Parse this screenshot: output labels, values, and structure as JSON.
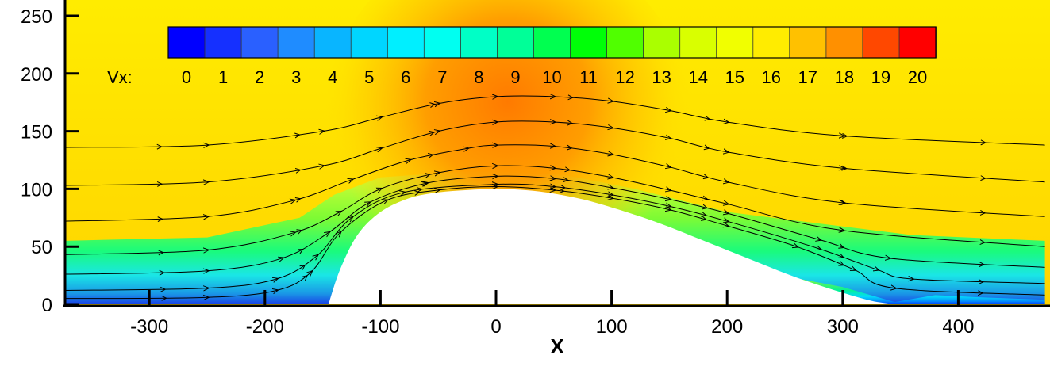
{
  "chart_data": {
    "type": "heatmap",
    "title": "",
    "xlabel": "X",
    "ylabel": "",
    "xlim": [
      -375,
      475
    ],
    "ylim": [
      0,
      265
    ],
    "x_ticks": [
      -300,
      -200,
      -100,
      0,
      100,
      200,
      300,
      400
    ],
    "y_ticks": [
      0,
      50,
      100,
      150,
      200,
      250
    ],
    "grid": false,
    "colorbar": {
      "variable_label": "Vx:",
      "levels": [
        0,
        1,
        2,
        3,
        4,
        5,
        6,
        7,
        8,
        9,
        10,
        11,
        12,
        13,
        14,
        15,
        16,
        17,
        18,
        19,
        20
      ],
      "colors": [
        "#0000ff",
        "#2f6bff",
        "#00c8ff",
        "#00ffff",
        "#00ffa0",
        "#00ff00",
        "#c8ff00",
        "#ffff00",
        "#ffa000",
        "#ff0000"
      ],
      "placement": "top"
    },
    "obstacle_profile": {
      "x": [
        -145,
        -135,
        -120,
        -100,
        -75,
        -50,
        -25,
        0,
        25,
        50,
        75,
        100,
        125,
        150,
        175,
        200,
        225,
        250,
        275,
        300,
        325,
        345
      ],
      "y": [
        0,
        30,
        60,
        80,
        92,
        97,
        99,
        100,
        99,
        96,
        91,
        84,
        76,
        67,
        57,
        47,
        37,
        27,
        18,
        10,
        3,
        0
      ]
    },
    "streamlines": [
      {
        "y0": 135,
        "x": [
          -375,
          -250,
          -150,
          -100,
          -50,
          0,
          50,
          100,
          150,
          200,
          300,
          475
        ],
        "y": [
          136,
          138,
          150,
          162,
          174,
          180,
          180,
          176,
          168,
          158,
          146,
          138
        ]
      },
      {
        "y0": 103,
        "x": [
          -375,
          -250,
          -150,
          -100,
          -50,
          0,
          50,
          100,
          150,
          200,
          300,
          475
        ],
        "y": [
          103,
          106,
          120,
          135,
          150,
          158,
          158,
          153,
          144,
          132,
          118,
          106
        ]
      },
      {
        "y0": 72,
        "x": [
          -375,
          -250,
          -175,
          -125,
          -75,
          -25,
          0,
          50,
          100,
          150,
          200,
          300,
          475
        ],
        "y": [
          72,
          76,
          90,
          108,
          125,
          135,
          138,
          137,
          130,
          119,
          106,
          88,
          76
        ]
      },
      {
        "y0": 43,
        "x": [
          -375,
          -250,
          -175,
          -135,
          -100,
          -50,
          0,
          50,
          100,
          150,
          200,
          300,
          475
        ],
        "y": [
          43,
          47,
          62,
          80,
          100,
          114,
          120,
          118,
          110,
          99,
          87,
          64,
          50
        ]
      },
      {
        "y0": 26,
        "x": [
          -375,
          -250,
          -185,
          -145,
          -110,
          -60,
          0,
          50,
          100,
          150,
          200,
          280,
          340,
          475
        ],
        "y": [
          26,
          29,
          40,
          62,
          88,
          105,
          111,
          109,
          101,
          91,
          79,
          56,
          40,
          32
        ]
      },
      {
        "y0": 12,
        "x": [
          -375,
          -250,
          -190,
          -155,
          -125,
          -80,
          0,
          50,
          100,
          150,
          200,
          280,
          330,
          360,
          475
        ],
        "y": [
          12,
          14,
          22,
          42,
          75,
          97,
          104,
          102,
          95,
          85,
          72,
          48,
          30,
          22,
          18
        ]
      },
      {
        "y0": 5,
        "x": [
          -375,
          -250,
          -190,
          -160,
          -135,
          -95,
          -50,
          0,
          50,
          100,
          150,
          200,
          260,
          310,
          345,
          475
        ],
        "y": [
          5,
          6,
          12,
          28,
          62,
          90,
          99,
          102,
          99,
          92,
          82,
          68,
          50,
          30,
          14,
          8
        ]
      }
    ]
  }
}
